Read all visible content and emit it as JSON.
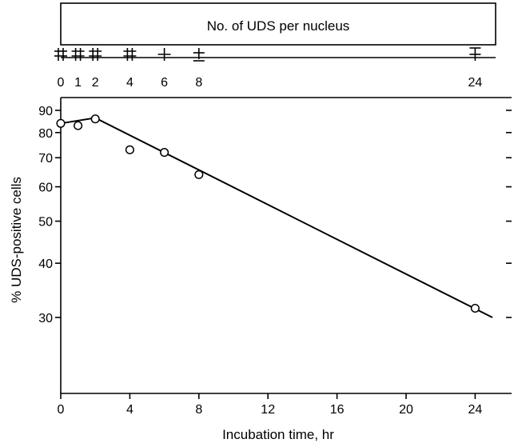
{
  "chart_data": [
    {
      "type": "scatter",
      "panel": "main",
      "title": "",
      "xlabel": "Incubation time, hr",
      "ylabel": "% UDS-positive cells",
      "x_scale": "linear",
      "y_scale": "log",
      "xlim": [
        0,
        25
      ],
      "ylim": [
        20,
        100
      ],
      "grid": false,
      "x_ticks": [
        0,
        4,
        8,
        12,
        16,
        20,
        24
      ],
      "x_tick_labels": [
        "0",
        "4",
        "8",
        "12",
        "16",
        "20",
        "24"
      ],
      "y_ticks": [
        30,
        40,
        50,
        60,
        70,
        80,
        90
      ],
      "y_tick_labels": [
        "30",
        "40",
        "50",
        "60",
        "70",
        "80",
        "90"
      ],
      "series": [
        {
          "marker": "open-circle",
          "points": [
            {
              "x": 0,
              "y": 84
            },
            {
              "x": 1,
              "y": 83
            },
            {
              "x": 2,
              "y": 86
            },
            {
              "x": 4,
              "y": 73
            },
            {
              "x": 6,
              "y": 72
            },
            {
              "x": 8,
              "y": 64
            },
            {
              "x": 24,
              "y": 31.5
            }
          ]
        }
      ],
      "fit_line": [
        {
          "x": 0,
          "y": 84
        },
        {
          "x": 2,
          "y": 86.5
        },
        {
          "x": 25,
          "y": 30
        }
      ]
    },
    {
      "type": "table",
      "panel": "top",
      "title": "No. of UDS per nucleus",
      "x_ticks": [
        0,
        1,
        2,
        4,
        6,
        8,
        24
      ],
      "x_tick_labels": [
        "0",
        "1",
        "2",
        "4",
        "6",
        "8",
        "24"
      ],
      "markers": [
        {
          "x": 0,
          "glyph": "‡"
        },
        {
          "x": 1,
          "glyph": "‡"
        },
        {
          "x": 2,
          "glyph": "‡"
        },
        {
          "x": 4,
          "glyph": "‡"
        },
        {
          "x": 6,
          "glyph": "+"
        },
        {
          "x": 8,
          "glyph": "±"
        },
        {
          "x": 24,
          "glyph": "∓"
        }
      ]
    }
  ]
}
